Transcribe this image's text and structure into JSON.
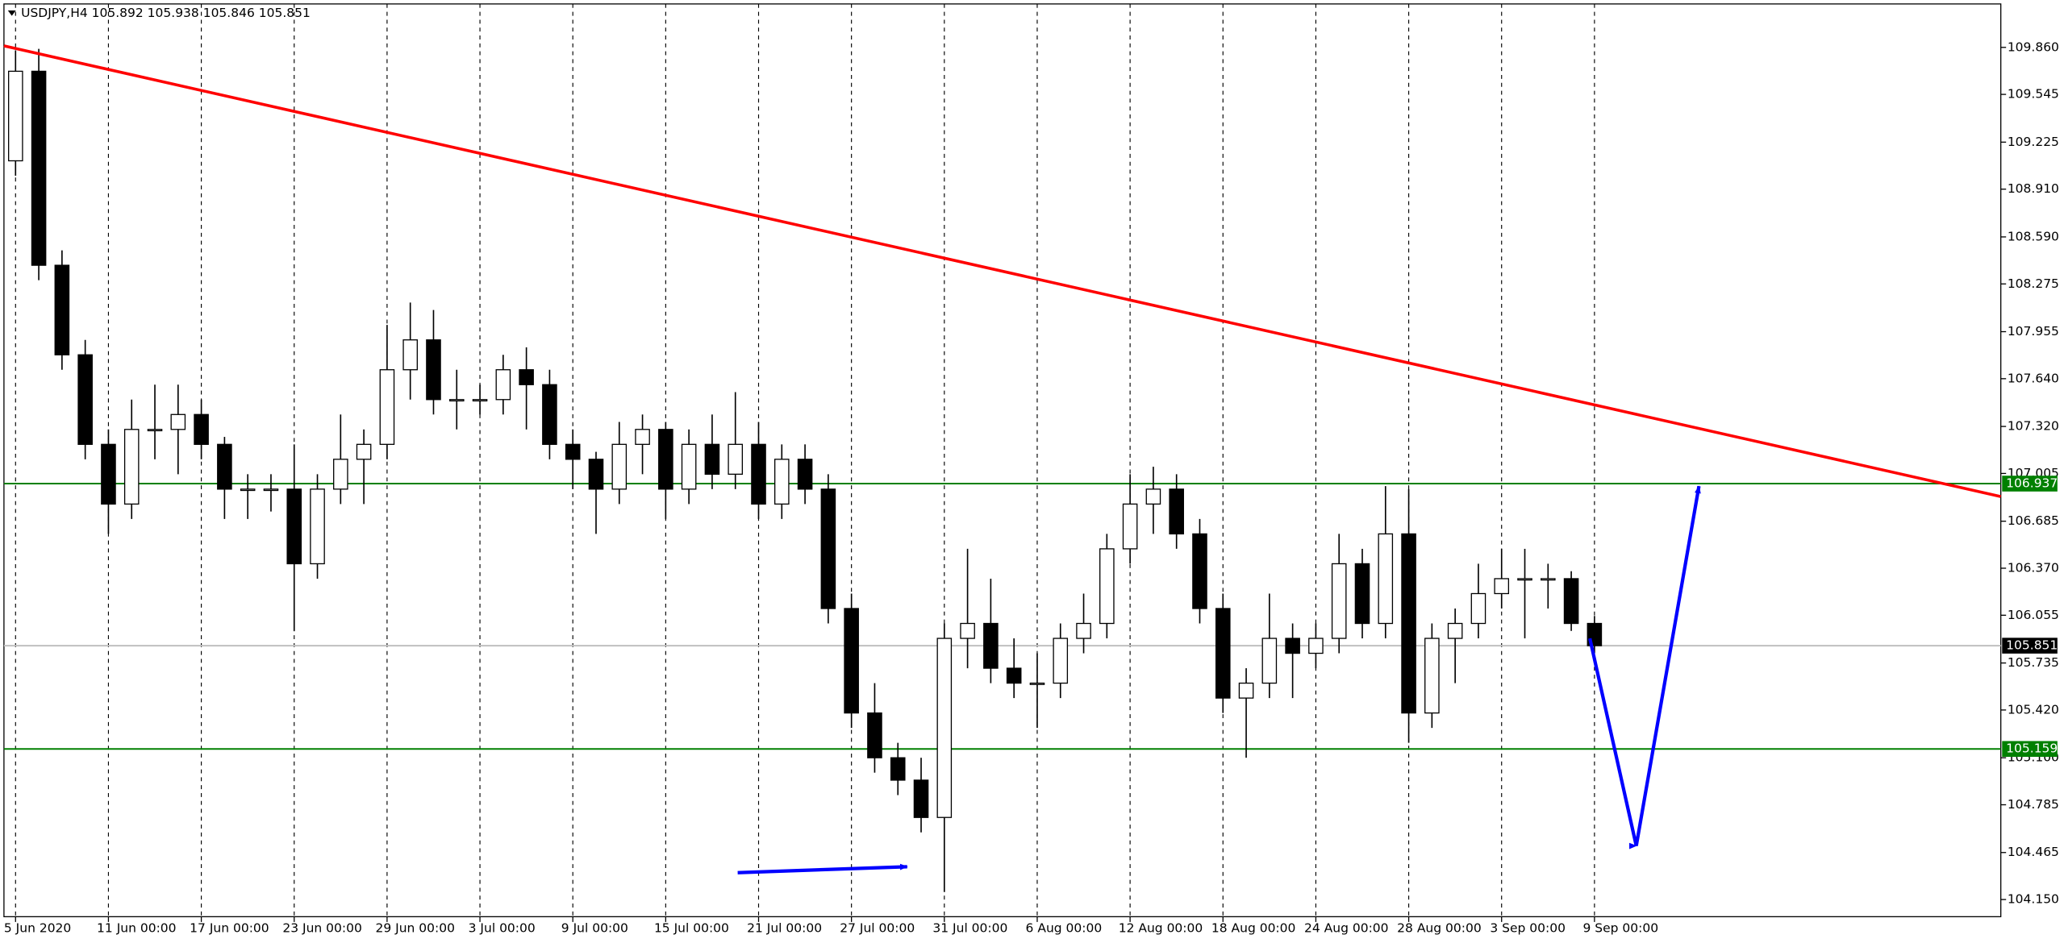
{
  "chart_data": {
    "type": "candlestick",
    "title": "USDJPY,H4  105.892 105.938 105.846 105.851",
    "categories": [
      "5 Jun 2020",
      null,
      null,
      null,
      "11 Jun 00:00",
      null,
      null,
      null,
      "17 Jun 00:00",
      null,
      null,
      null,
      "23 Jun 00:00",
      null,
      null,
      null,
      "29 Jun 00:00",
      null,
      null,
      null,
      "3 Jul 00:00",
      null,
      null,
      null,
      "9 Jul 00:00",
      null,
      null,
      null,
      "15 Jul 00:00",
      null,
      null,
      null,
      "21 Jul 00:00",
      null,
      null,
      null,
      "27 Jul 00:00",
      null,
      null,
      null,
      "31 Jul 00:00",
      null,
      null,
      null,
      "6 Aug 00:00",
      null,
      null,
      null,
      "12 Aug 00:00",
      null,
      null,
      null,
      "18 Aug 00:00",
      null,
      null,
      null,
      "24 Aug 00:00",
      null,
      null,
      null,
      "28 Aug 00:00",
      null,
      null,
      null,
      "3 Sep 00:00",
      null,
      null,
      null,
      "9 Sep 00:00"
    ],
    "open": [
      109.1,
      109.7,
      108.4,
      107.8,
      107.2,
      106.8,
      107.3,
      107.3,
      107.4,
      107.2,
      106.9,
      106.9,
      106.9,
      106.4,
      106.9,
      107.1,
      107.2,
      107.7,
      107.9,
      107.5,
      107.5,
      107.5,
      107.7,
      107.6,
      107.2,
      107.1,
      106.9,
      107.2,
      107.3,
      106.9,
      107.2,
      107.0,
      107.2,
      106.8,
      107.1,
      106.9,
      106.1,
      105.4,
      105.1,
      104.95,
      104.7,
      105.9,
      106.0,
      105.7,
      105.6,
      105.6,
      105.9,
      106.0,
      106.5,
      106.8,
      106.9,
      106.6,
      106.1,
      105.5,
      105.6,
      105.9,
      105.8,
      105.9,
      106.4,
      106.0,
      106.6,
      105.4,
      105.9,
      106.0,
      106.2,
      106.3,
      106.3,
      106.3,
      106.0
    ],
    "high": [
      109.84,
      109.85,
      108.5,
      107.9,
      107.3,
      107.5,
      107.6,
      107.6,
      107.5,
      107.25,
      107.0,
      107.0,
      107.2,
      107.0,
      107.4,
      107.3,
      108.0,
      108.15,
      108.1,
      107.7,
      107.6,
      107.8,
      107.85,
      107.7,
      107.3,
      107.15,
      107.35,
      107.4,
      107.35,
      107.3,
      107.4,
      107.55,
      107.35,
      107.2,
      107.2,
      107.0,
      106.2,
      105.6,
      105.2,
      105.1,
      106.0,
      106.5,
      106.3,
      105.9,
      105.8,
      106.0,
      106.2,
      106.6,
      107.0,
      107.05,
      107.0,
      106.7,
      106.2,
      105.7,
      106.2,
      106.0,
      106.0,
      106.6,
      106.5,
      106.92,
      106.9,
      106.0,
      106.1,
      106.4,
      106.5,
      106.5,
      106.4,
      106.35,
      106.05
    ],
    "low": [
      109.0,
      108.3,
      107.7,
      107.1,
      106.6,
      106.7,
      107.1,
      107.0,
      107.1,
      106.7,
      106.7,
      106.75,
      105.95,
      106.3,
      106.8,
      106.8,
      107.1,
      107.5,
      107.4,
      107.3,
      107.4,
      107.4,
      107.3,
      107.1,
      106.9,
      106.6,
      106.8,
      107.0,
      106.7,
      106.8,
      106.9,
      106.9,
      106.7,
      106.7,
      106.8,
      106.0,
      105.3,
      105.0,
      104.85,
      104.6,
      104.2,
      105.7,
      105.6,
      105.5,
      105.3,
      105.5,
      105.8,
      105.9,
      106.4,
      106.6,
      106.5,
      106.0,
      105.4,
      105.1,
      105.5,
      105.5,
      105.7,
      105.8,
      105.9,
      105.9,
      105.2,
      105.3,
      105.6,
      105.9,
      106.1,
      105.9,
      106.1,
      105.95,
      105.8
    ],
    "close": [
      109.7,
      108.4,
      107.8,
      107.2,
      106.8,
      107.3,
      107.3,
      107.4,
      107.2,
      106.9,
      106.9,
      106.9,
      106.4,
      106.9,
      107.1,
      107.2,
      107.7,
      107.9,
      107.5,
      107.5,
      107.5,
      107.7,
      107.6,
      107.2,
      107.1,
      106.9,
      107.2,
      107.3,
      106.9,
      107.2,
      107.0,
      107.2,
      106.8,
      107.1,
      106.9,
      106.1,
      105.4,
      105.1,
      104.95,
      104.7,
      105.9,
      106.0,
      105.7,
      105.6,
      105.6,
      105.9,
      106.0,
      106.5,
      106.8,
      106.9,
      106.6,
      106.1,
      105.5,
      105.6,
      105.9,
      105.8,
      105.9,
      106.4,
      106.0,
      106.6,
      105.4,
      105.9,
      106.0,
      106.2,
      106.3,
      106.3,
      106.3,
      106.0,
      105.851
    ],
    "xlim": [
      0,
      86
    ],
    "ylim": [
      104.035,
      110.151
    ],
    "yticks": [
      {
        "value": 109.86,
        "label": "109.860"
      },
      {
        "value": 109.545,
        "label": "109.545"
      },
      {
        "value": 109.225,
        "label": "109.225"
      },
      {
        "value": 108.91,
        "label": "108.910"
      },
      {
        "value": 108.59,
        "label": "108.590"
      },
      {
        "value": 108.275,
        "label": "108.275"
      },
      {
        "value": 107.955,
        "label": "107.955"
      },
      {
        "value": 107.64,
        "label": "107.640"
      },
      {
        "value": 107.32,
        "label": "107.320"
      },
      {
        "value": 107.005,
        "label": "107.005"
      },
      {
        "value": 106.685,
        "label": "106.685"
      },
      {
        "value": 106.37,
        "label": "106.370"
      },
      {
        "value": 106.055,
        "label": "106.055"
      },
      {
        "value": 105.735,
        "label": "105.735"
      },
      {
        "value": 105.42,
        "label": "105.420"
      },
      {
        "value": 105.1,
        "label": "105.100"
      },
      {
        "value": 104.785,
        "label": "104.785"
      },
      {
        "value": 104.465,
        "label": "104.465"
      },
      {
        "value": 104.15,
        "label": "104.150"
      }
    ],
    "grid": true,
    "hlines": [
      {
        "value": 106.937,
        "color": "#008000"
      },
      {
        "value": 105.159,
        "color": "#008000"
      },
      {
        "value": 105.851,
        "color": "#c0c0c0"
      }
    ],
    "trendlines": [
      {
        "color": "#ff0000",
        "points": [
          [
            0,
            109.87
          ],
          [
            86,
            106.85
          ]
        ]
      }
    ],
    "arrows": [
      {
        "color": "#0000ff",
        "points": [
          [
            31.6,
            104.33
          ],
          [
            38.9,
            104.37
          ]
        ]
      },
      {
        "color": "#0000ff",
        "points": [
          [
            68.3,
            105.9
          ],
          [
            70.3,
            104.51
          ],
          [
            73.0,
            106.92
          ]
        ]
      }
    ]
  }
}
